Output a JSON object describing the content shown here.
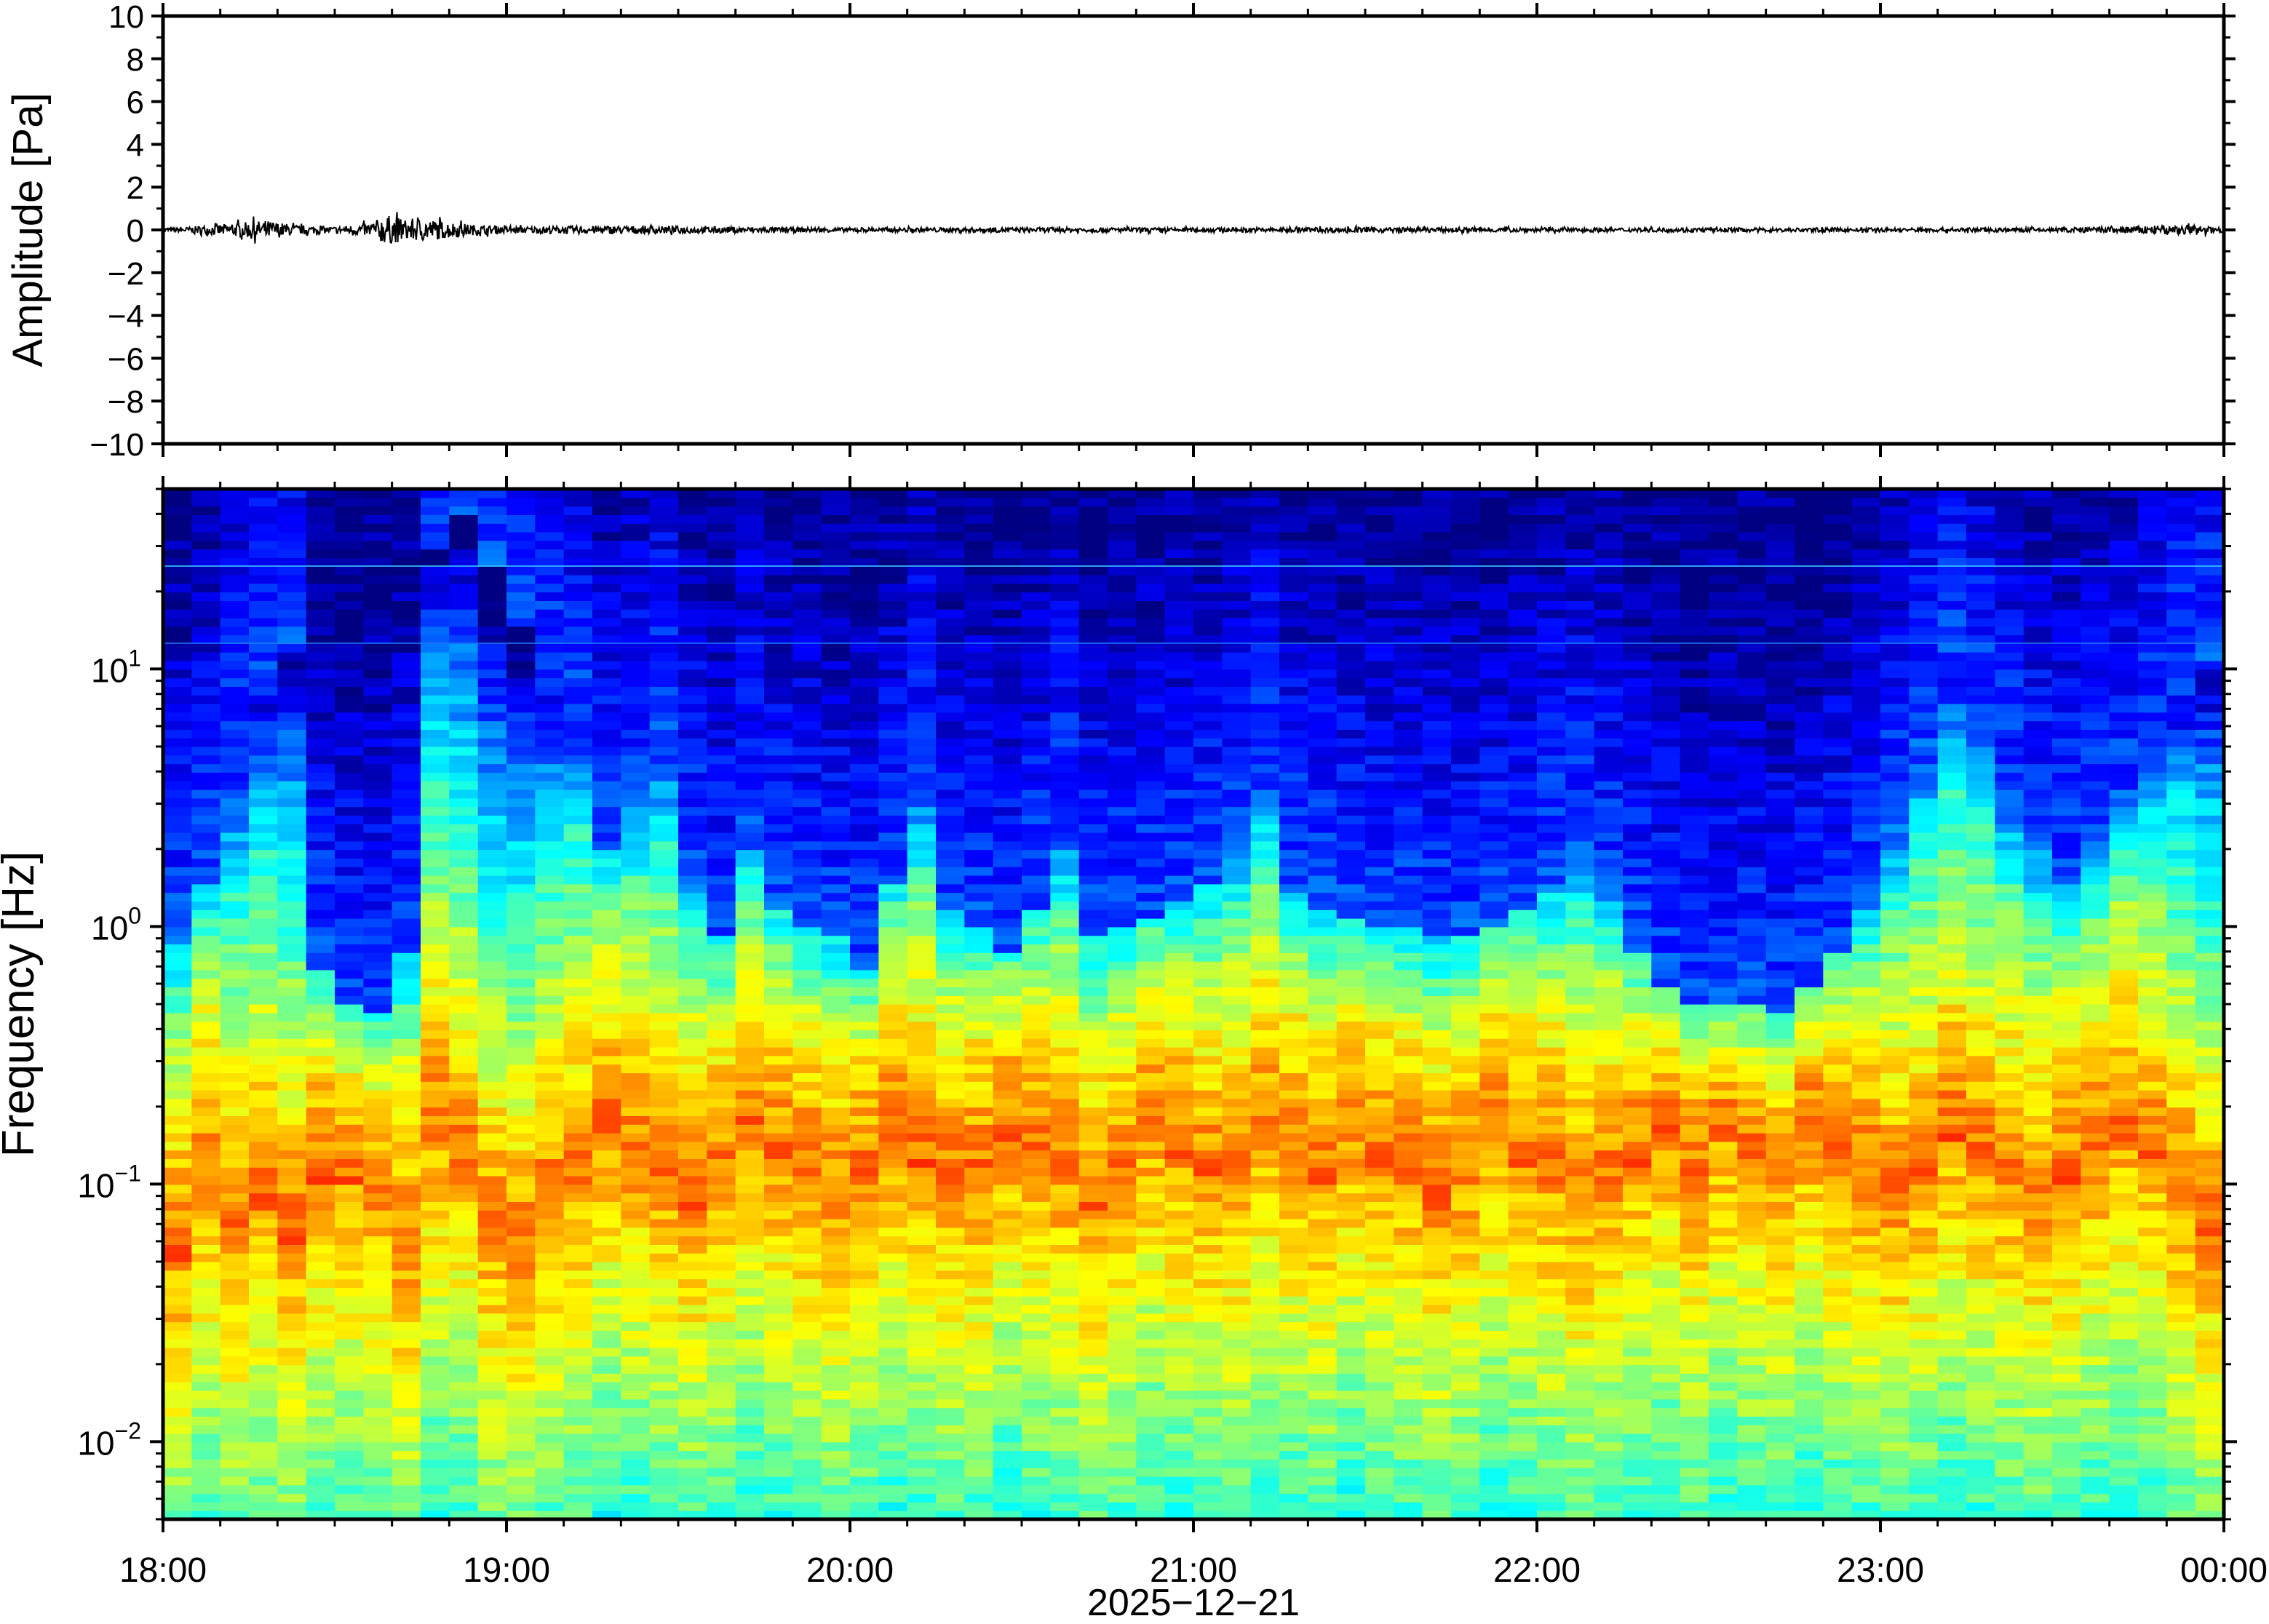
{
  "chart_data": [
    {
      "type": "line",
      "panel": "waveform",
      "ylabel": "Amplitude [Pa]",
      "ylim": [
        -10,
        10
      ],
      "yticks": [
        10,
        8,
        6,
        4,
        2,
        0,
        -2,
        -4,
        -6,
        -8,
        -10
      ],
      "ytick_labels": [
        "10",
        "8",
        "6",
        "4",
        "2",
        "0",
        "−2",
        "−4",
        "−6",
        "−8",
        "−10"
      ],
      "xlim_hours": [
        18,
        24
      ],
      "grid": false,
      "trace_color": "#000000",
      "series": [
        {
          "x_hours": [
            18.05,
            18.15,
            18.2,
            18.3,
            18.4,
            18.5,
            18.6,
            18.65,
            18.7,
            18.75,
            18.8,
            18.9,
            19.0,
            19.3,
            19.6,
            20.0,
            20.5,
            21.0,
            21.5,
            22.0,
            22.5,
            23.0,
            23.5,
            23.8,
            23.9,
            24.0
          ],
          "envelope": [
            0.1,
            0.25,
            0.3,
            0.45,
            0.2,
            0.15,
            0.3,
            0.7,
            0.5,
            0.55,
            0.45,
            0.25,
            0.15,
            0.2,
            0.15,
            0.1,
            0.12,
            0.1,
            0.12,
            0.1,
            0.1,
            0.1,
            0.1,
            0.2,
            0.25,
            0.1
          ]
        }
      ]
    },
    {
      "type": "heatmap",
      "panel": "spectrogram",
      "ylabel": "Frequency [Hz]",
      "yscale": "log",
      "ylim_hz": [
        0.005,
        50
      ],
      "yticks": [
        {
          "base": "10",
          "exp": "1",
          "value": 10
        },
        {
          "base": "10",
          "exp": "0",
          "value": 1
        },
        {
          "base": "10",
          "exp": "−1",
          "value": 0.1
        },
        {
          "base": "10",
          "exp": "−2",
          "value": 0.01
        }
      ],
      "xlabel": "2025−12−21",
      "xticks": [
        "18:00",
        "19:00",
        "20:00",
        "21:00",
        "22:00",
        "23:00",
        "00:00"
      ],
      "xlim_hours": [
        18,
        24
      ],
      "colormap": "jet",
      "colors": {
        "darkest": "#00007a",
        "deep_blue": "#0020d0",
        "blue": "#2080ff",
        "cyan": "#40c8ff",
        "aqua_green": "#7cf0c8",
        "yellow_green": "#d8f090",
        "yellow": "#ffe070",
        "orange": "#ffa040"
      },
      "column_width_hours": 0.0833,
      "columns_top_frequency_hz": [
        0.9,
        1.5,
        4,
        8,
        12,
        0.7,
        0.5,
        0.45,
        0.8,
        30,
        40,
        25,
        15,
        8,
        6,
        2,
        3,
        5,
        1.5,
        0.9,
        2,
        1.2,
        1.0,
        0.9,
        0.7,
        1.5,
        3,
        1.2,
        1.0,
        0.8,
        1.2,
        2,
        0.9,
        1.0,
        1.1,
        1.3,
        1.5,
        2,
        3,
        1.4,
        1.2,
        1.1,
        1.0,
        1.0,
        0.9,
        0.9,
        1.0,
        1.2,
        1.5,
        2,
        1.3,
        0.8,
        0.6,
        0.5,
        0.5,
        0.5,
        0.45,
        0.6,
        0.8,
        1.2,
        2.5,
        5,
        9,
        6,
        3,
        2,
        1.5,
        2,
        3,
        5,
        8,
        10
      ],
      "columns_peak_band_hz": [
        0.05,
        0.1,
        0.06,
        0.08,
        0.06,
        0.1,
        0.1,
        0.08,
        0.05,
        0.15,
        0.12,
        0.06,
        0.05,
        0.08,
        0.1,
        0.15,
        0.12,
        0.1,
        0.08,
        0.1,
        0.15,
        0.12,
        0.1,
        0.08,
        0.1,
        0.15,
        0.12,
        0.1,
        0.1,
        0.15,
        0.12,
        0.1,
        0.08,
        0.1,
        0.15,
        0.12,
        0.1,
        0.1,
        0.15,
        0.12,
        0.1,
        0.15,
        0.12,
        0.1,
        0.08,
        0.1,
        0.15,
        0.12,
        0.1,
        0.08,
        0.1,
        0.12,
        0.15,
        0.1,
        0.15,
        0.12,
        0.1,
        0.15,
        0.12,
        0.1,
        0.08,
        0.1,
        0.15,
        0.12,
        0.1,
        0.08,
        0.1,
        0.12,
        0.15,
        0.12,
        0.08,
        0.06
      ]
    }
  ]
}
